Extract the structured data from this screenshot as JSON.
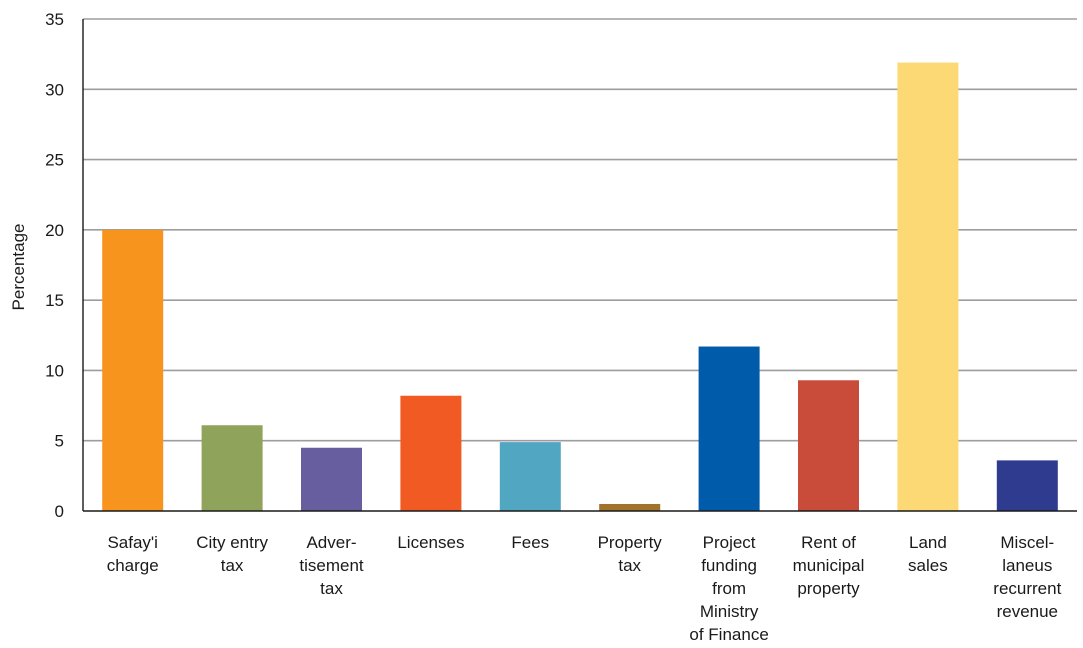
{
  "chart_data": {
    "type": "bar",
    "title": "",
    "xlabel": "",
    "ylabel": "Percentage",
    "ylim": [
      0,
      35
    ],
    "yticks": [
      0,
      5,
      10,
      15,
      20,
      25,
      30,
      35
    ],
    "grid": true,
    "legend": "none",
    "categories": [
      "Safay'i charge",
      "City entry tax",
      "Advertisement tax",
      "Licenses",
      "Fees",
      "Property tax",
      "Project funding from Ministry of Finance",
      "Rent of municipal property",
      "Land sales",
      "Miscellaneus recurrent revenue"
    ],
    "category_label_lines": [
      [
        "Safay'i",
        "charge"
      ],
      [
        "City entry",
        "tax"
      ],
      [
        "Adver-",
        "tisement",
        "tax"
      ],
      [
        "Licenses"
      ],
      [
        "Fees"
      ],
      [
        "Property",
        "tax"
      ],
      [
        "Project",
        "funding",
        "from",
        "Ministry",
        "of Finance"
      ],
      [
        "Rent of",
        "municipal",
        "property"
      ],
      [
        "Land",
        "sales"
      ],
      [
        "Miscel-",
        "laneus",
        "recurrent",
        "revenue"
      ]
    ],
    "values": [
      20.0,
      6.1,
      4.5,
      8.2,
      4.9,
      0.5,
      11.7,
      9.3,
      31.9,
      3.6
    ],
    "colors": [
      "#F7941D",
      "#8FA35A",
      "#665E9E",
      "#F15A22",
      "#51A6C2",
      "#A0722A",
      "#005BAA",
      "#C94B3A",
      "#FDD975",
      "#2E3B8F"
    ]
  }
}
